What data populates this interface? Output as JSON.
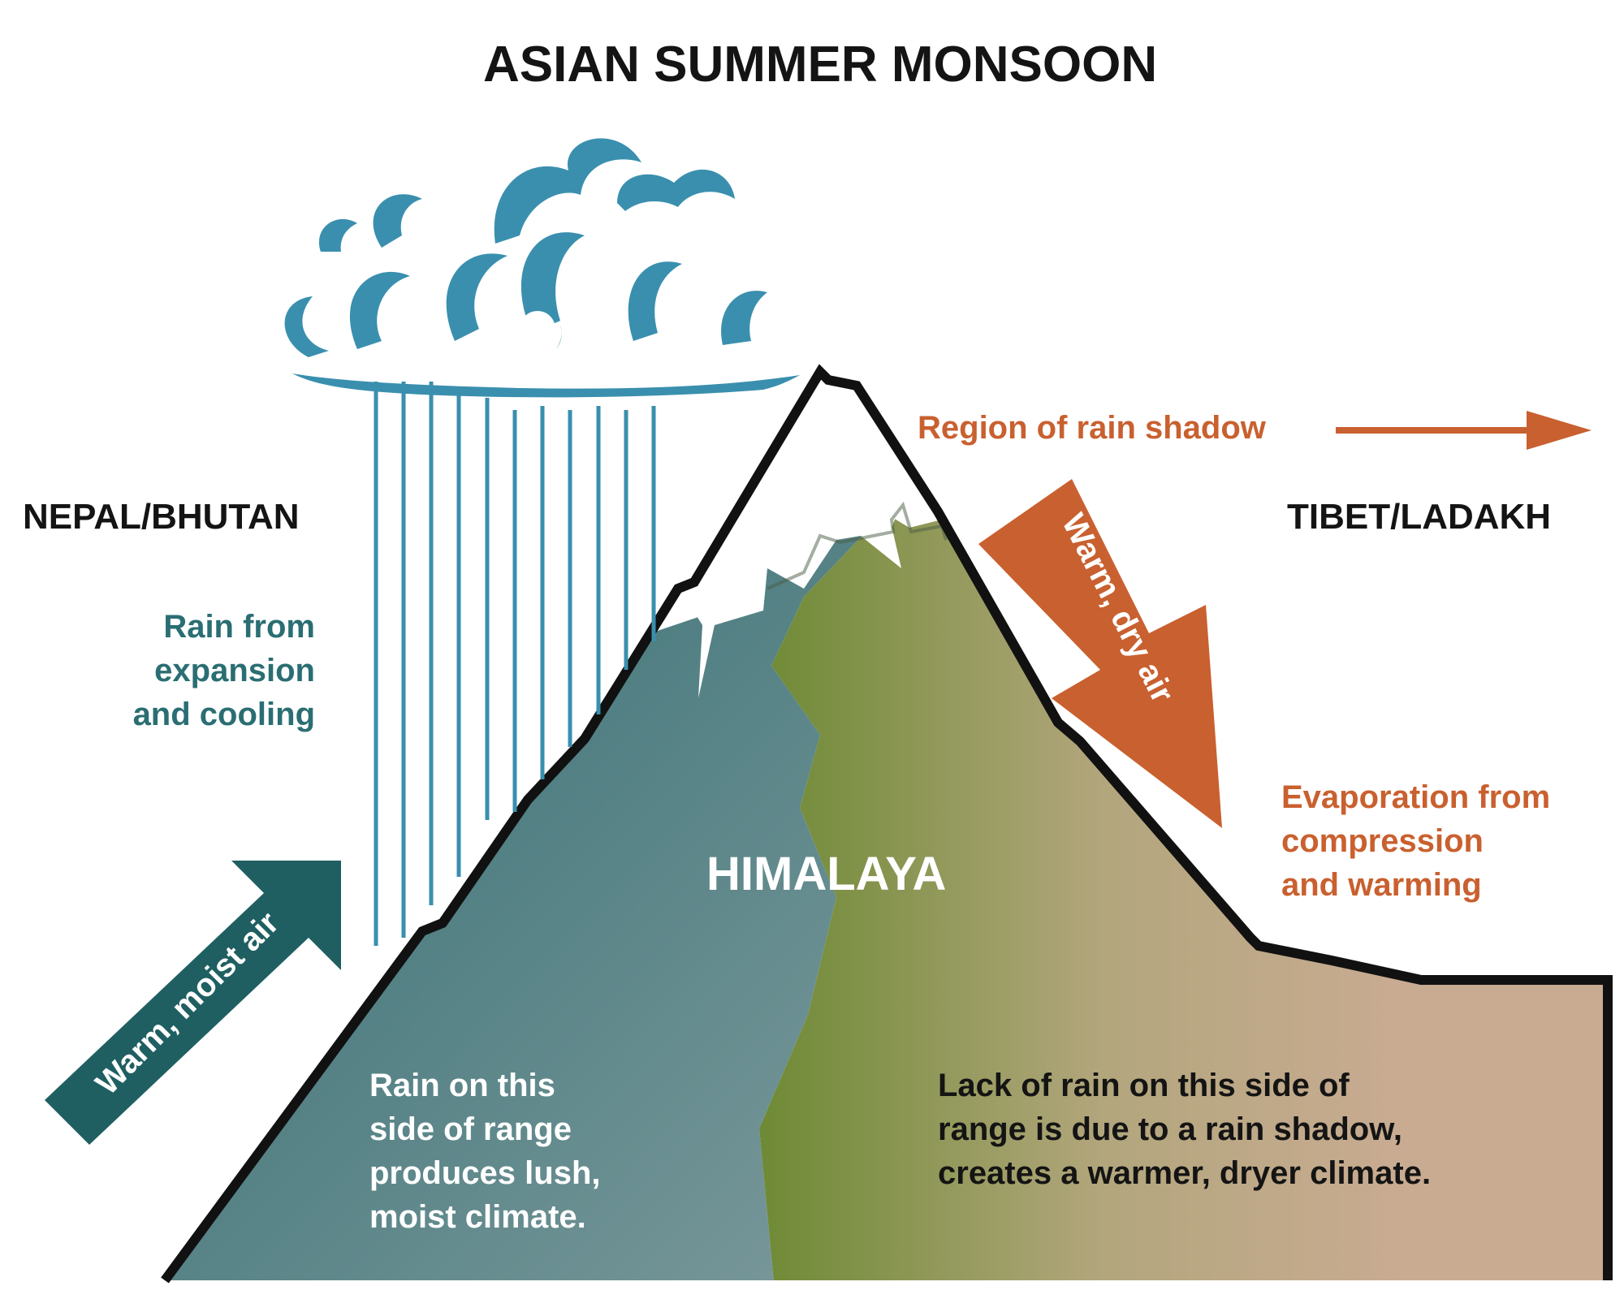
{
  "title": "ASIAN SUMMER MONSOON",
  "regions": {
    "left": "NEPAL/BHUTAN",
    "right": "TIBET/LADAKH"
  },
  "mountain_label": "HIMALAYA",
  "labels": {
    "rain_from": "Rain from\nexpansion\nand cooling",
    "rain_shadow_region": "Region of rain shadow",
    "evaporation": "Evaporation from\ncompression\nand warming",
    "windward_note": "Rain on this\nside of range\nproduces lush,\nmoist climate.",
    "leeward_note": "Lack of rain on this side of\nrange is due to a rain shadow,\ncreates a warmer, dryer climate."
  },
  "arrows": {
    "warm_moist_air": "Warm, moist air",
    "warm_dry_air": "Warm, dry air"
  },
  "colors": {
    "teal_dark": "#1f5f62",
    "teal_text": "#2a6e73",
    "cloud_blue": "#3a8fae",
    "orange": "#c9602f",
    "green": "#6d8a3a",
    "tan": "#c9ab92",
    "outline": "#111111"
  },
  "icons": [
    "rain-cloud-icon",
    "rain-streaks"
  ]
}
